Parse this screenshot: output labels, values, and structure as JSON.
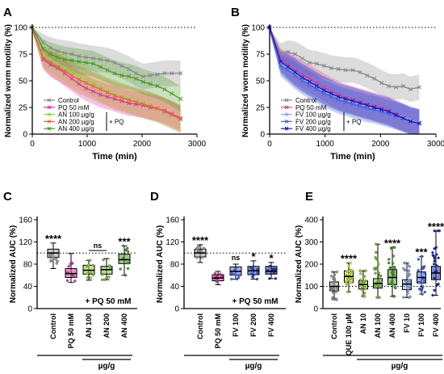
{
  "chart_data": [
    {
      "panel": "A",
      "type": "line",
      "xlabel": "Time (min)",
      "ylabel": "Normalized worm motility (%)",
      "xlim": [
        0,
        3000
      ],
      "ylim": [
        0,
        100
      ],
      "xticks": [
        0,
        1000,
        2000,
        3000
      ],
      "yticks": [
        0,
        25,
        50,
        75,
        100
      ],
      "reference_line_y": 100,
      "legend_position": "bottom-left",
      "legend_bracket_label": "+ PQ",
      "x": [
        0,
        200,
        330,
        460,
        590,
        720,
        850,
        980,
        1110,
        1240,
        1370,
        1500,
        1630,
        1760,
        1890,
        2020,
        2150,
        2280,
        2410,
        2540,
        2700
      ],
      "series": [
        {
          "name": "Control",
          "color": "#8a8a8a",
          "marker": "x",
          "values": [
            100,
            86,
            81,
            78,
            76,
            75,
            73,
            72,
            71,
            70,
            69,
            67,
            64,
            61,
            57,
            54,
            55,
            56,
            57,
            57,
            57
          ],
          "band": [
            4,
            8,
            10,
            11,
            12,
            12,
            12,
            12,
            12,
            12,
            12,
            12,
            12,
            12,
            12,
            12,
            12,
            12,
            12,
            12,
            12
          ]
        },
        {
          "name": "PQ 50 mM",
          "color": "#d63aa0",
          "marker": "x",
          "values": [
            100,
            70,
            65,
            62,
            57,
            52,
            47,
            43,
            40,
            37,
            35,
            33,
            31,
            29,
            28,
            27,
            25,
            24,
            22,
            19,
            15
          ],
          "band": [
            4,
            9,
            12,
            12,
            12,
            12,
            12,
            12,
            12,
            12,
            12,
            12,
            12,
            12,
            12,
            12,
            12,
            12,
            12,
            12,
            12
          ]
        },
        {
          "name": "AN 100 µg/g",
          "color": "#9ad24a",
          "marker": "x",
          "values": [
            100,
            74,
            70,
            66,
            62,
            58,
            55,
            52,
            48,
            44,
            40,
            38,
            35,
            33,
            31,
            29,
            27,
            24,
            21,
            18,
            14
          ],
          "band": [
            4,
            10,
            12,
            13,
            13,
            13,
            13,
            13,
            13,
            13,
            13,
            13,
            13,
            13,
            13,
            13,
            13,
            13,
            13,
            13,
            13
          ]
        },
        {
          "name": "AN 200 µg/g",
          "color": "#e06a3c",
          "marker": "x",
          "values": [
            100,
            71,
            67,
            63,
            59,
            55,
            51,
            48,
            45,
            42,
            39,
            36,
            34,
            32,
            30,
            28,
            26,
            24,
            21,
            18,
            14
          ],
          "band": [
            4,
            10,
            12,
            13,
            13,
            13,
            13,
            13,
            13,
            13,
            13,
            13,
            13,
            13,
            13,
            13,
            13,
            13,
            13,
            13,
            13
          ]
        },
        {
          "name": "AN 400 µg/g",
          "color": "#4f9a2a",
          "marker": "x",
          "values": [
            100,
            80,
            75,
            72,
            70,
            69,
            68,
            67,
            66,
            63,
            60,
            57,
            55,
            54,
            52,
            49,
            47,
            45,
            42,
            38,
            33
          ],
          "band": [
            4,
            9,
            11,
            12,
            12,
            12,
            12,
            12,
            12,
            12,
            12,
            12,
            12,
            12,
            12,
            12,
            12,
            12,
            12,
            12,
            12
          ]
        }
      ]
    },
    {
      "panel": "B",
      "type": "line",
      "xlabel": "Time (min)",
      "ylabel": "Normalized worm motility (%)",
      "xlim": [
        0,
        3000
      ],
      "ylim": [
        0,
        100
      ],
      "xticks": [
        0,
        1000,
        2000,
        3000
      ],
      "yticks": [
        0,
        25,
        50,
        75,
        100
      ],
      "reference_line_y": 100,
      "legend_position": "bottom-left",
      "legend_bracket_label": "+ PQ",
      "x": [
        0,
        200,
        330,
        460,
        590,
        720,
        850,
        980,
        1110,
        1240,
        1370,
        1500,
        1630,
        1760,
        1890,
        2020,
        2150,
        2280,
        2410,
        2540,
        2700
      ],
      "series": [
        {
          "name": "Control",
          "color": "#8a8a8a",
          "marker": "x",
          "values": [
            100,
            76,
            77,
            75,
            71,
            67,
            66,
            64,
            62,
            61,
            60,
            60,
            58,
            55,
            52,
            48,
            45,
            44,
            45,
            42,
            44
          ],
          "band": [
            4,
            9,
            11,
            12,
            12,
            12,
            12,
            12,
            12,
            12,
            12,
            12,
            12,
            12,
            12,
            12,
            12,
            12,
            12,
            12,
            12
          ]
        },
        {
          "name": "PQ 50 mM",
          "color": "#d63aa0",
          "marker": "x",
          "values": [
            100,
            70,
            65,
            60,
            56,
            52,
            48,
            44,
            40,
            37,
            34,
            32,
            30,
            28,
            26,
            24,
            22,
            19,
            16,
            13,
            10
          ],
          "band": [
            4,
            10,
            12,
            13,
            13,
            13,
            13,
            13,
            13,
            13,
            13,
            13,
            13,
            13,
            13,
            13,
            13,
            13,
            13,
            13,
            13
          ]
        },
        {
          "name": "FV 100 µg/g",
          "color": "#8fa8f0",
          "marker": "x",
          "values": [
            100,
            66,
            62,
            57,
            52,
            48,
            44,
            40,
            37,
            34,
            32,
            30,
            28,
            26,
            24,
            22,
            20,
            18,
            16,
            13,
            11
          ],
          "band": [
            4,
            10,
            12,
            13,
            13,
            13,
            13,
            13,
            13,
            13,
            13,
            13,
            13,
            13,
            13,
            13,
            13,
            13,
            13,
            13,
            13
          ]
        },
        {
          "name": "FV 200 µg/g",
          "color": "#4466e0",
          "marker": "x",
          "values": [
            100,
            64,
            60,
            55,
            50,
            46,
            42,
            38,
            35,
            32,
            30,
            28,
            26,
            24,
            23,
            21,
            19,
            17,
            15,
            12,
            10
          ],
          "band": [
            4,
            10,
            12,
            13,
            13,
            13,
            13,
            13,
            13,
            13,
            13,
            13,
            13,
            13,
            13,
            13,
            13,
            13,
            13,
            13,
            13
          ]
        },
        {
          "name": "FV 400 µg/g",
          "color": "#1a1ab0",
          "marker": "x",
          "values": [
            100,
            68,
            63,
            58,
            53,
            49,
            45,
            41,
            38,
            35,
            33,
            31,
            29,
            27,
            25,
            23,
            21,
            18,
            15,
            12,
            10
          ],
          "band": [
            4,
            10,
            12,
            13,
            13,
            13,
            13,
            13,
            13,
            13,
            13,
            13,
            13,
            13,
            13,
            13,
            13,
            13,
            13,
            13,
            13
          ]
        }
      ]
    },
    {
      "panel": "C",
      "type": "box",
      "ylabel": "Normalized AUC (%)",
      "ylim": [
        0,
        160
      ],
      "yticks": [
        0,
        40,
        80,
        120,
        160
      ],
      "reference_line_y": 100,
      "categories": [
        "Control",
        "PQ 50 mM",
        "AN 100",
        "AN 200",
        "AN 400"
      ],
      "colors": [
        "#9a9a9a",
        "#d63aa0",
        "#9ad24a",
        "#7cc040",
        "#4f9a2a"
      ],
      "significance": [
        "****",
        "",
        "",
        "",
        "***"
      ],
      "comparisons": [
        {
          "from": 2,
          "to": 3,
          "label": "ns"
        }
      ],
      "boxes": [
        {
          "min": 72,
          "q1": 92,
          "median": 100,
          "q3": 107,
          "max": 118
        },
        {
          "min": 47,
          "q1": 56,
          "median": 63,
          "q3": 72,
          "max": 99
        },
        {
          "min": 51,
          "q1": 62,
          "median": 69,
          "q3": 78,
          "max": 87
        },
        {
          "min": 52,
          "q1": 62,
          "median": 70,
          "q3": 76,
          "max": 90
        },
        {
          "min": 60,
          "q1": 81,
          "median": 88,
          "q3": 98,
          "max": 113
        }
      ],
      "group_bracket_label": "+ PQ 50 mM",
      "unit_label": "µg/g"
    },
    {
      "panel": "D",
      "type": "box",
      "ylabel": "Normalized AUC (%)",
      "ylim": [
        0,
        160
      ],
      "yticks": [
        0,
        40,
        80,
        120,
        160
      ],
      "reference_line_y": 100,
      "categories": [
        "Control",
        "PQ 50 mM",
        "FV 100",
        "FV 200",
        "FV 400"
      ],
      "colors": [
        "#9a9a9a",
        "#d63aa0",
        "#4a6ee6",
        "#2a4ad8",
        "#1a2aa8"
      ],
      "significance": [
        "****",
        "",
        "ns",
        "*",
        "*"
      ],
      "boxes": [
        {
          "min": 83,
          "q1": 93,
          "median": 100,
          "q3": 107,
          "max": 115
        },
        {
          "min": 43,
          "q1": 50,
          "median": 55,
          "q3": 61,
          "max": 67
        },
        {
          "min": 53,
          "q1": 60,
          "median": 67,
          "q3": 75,
          "max": 80
        },
        {
          "min": 53,
          "q1": 61,
          "median": 68,
          "q3": 76,
          "max": 86
        },
        {
          "min": 54,
          "q1": 62,
          "median": 67,
          "q3": 76,
          "max": 83
        }
      ],
      "group_bracket_label": "+ PQ 50 mM",
      "unit_label": "µg/g"
    },
    {
      "panel": "E",
      "type": "box",
      "ylabel": "Normalized AUC (%)",
      "ylim": [
        0,
        400
      ],
      "yticks": [
        0,
        100,
        200,
        300,
        400
      ],
      "reference_line_y": 100,
      "categories": [
        "Control",
        "QUE 100 µM",
        "AN 10",
        "AN 100",
        "AN 400",
        "FV 10",
        "FV 100",
        "FV 400"
      ],
      "colors": [
        "#9a9a9a",
        "#d6e84a",
        "#9ad24a",
        "#7cc040",
        "#4f9a2a",
        "#8fa8f0",
        "#4466e0",
        "#1a2aa8"
      ],
      "significance": [
        "",
        "****",
        "",
        "",
        "****",
        "",
        "***",
        "****"
      ],
      "boxes": [
        {
          "min": 40,
          "q1": 80,
          "median": 100,
          "q3": 120,
          "max": 165
        },
        {
          "min": 75,
          "q1": 118,
          "median": 145,
          "q3": 170,
          "max": 205
        },
        {
          "min": 55,
          "q1": 88,
          "median": 108,
          "q3": 125,
          "max": 170
        },
        {
          "min": 50,
          "q1": 92,
          "median": 113,
          "q3": 135,
          "max": 290
        },
        {
          "min": 55,
          "q1": 108,
          "median": 140,
          "q3": 175,
          "max": 275
        },
        {
          "min": 50,
          "q1": 85,
          "median": 110,
          "q3": 130,
          "max": 205
        },
        {
          "min": 65,
          "q1": 115,
          "median": 140,
          "q3": 165,
          "max": 235
        },
        {
          "min": 60,
          "q1": 130,
          "median": 160,
          "q3": 190,
          "max": 350
        }
      ],
      "unit_label": "µg/g"
    }
  ],
  "panel_letters": [
    "A",
    "B",
    "C",
    "D",
    "E"
  ]
}
